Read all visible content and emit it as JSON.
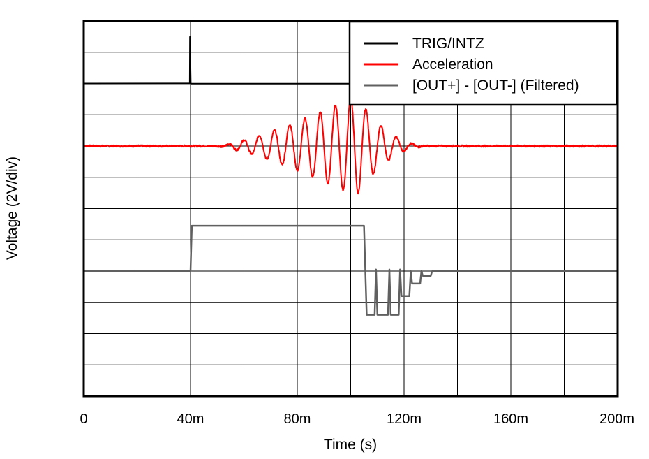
{
  "chart_data": {
    "type": "line",
    "title": "",
    "xlabel": "Time (s)",
    "ylabel": "Voltage (2V/div)",
    "xlim": [
      0,
      0.2
    ],
    "ylim": [
      -16,
      8
    ],
    "x_tick_labels": [
      "0",
      "40m",
      "80m",
      "120m",
      "160m",
      "200m"
    ],
    "x_ticks": [
      0,
      0.04,
      0.08,
      0.12,
      0.16,
      0.2
    ],
    "vertical_divisions": 10,
    "horizontal_divisions": 12,
    "grid": true,
    "legend": {
      "position": "top-right",
      "entries": [
        "TRIG/INTZ",
        "Acceleration",
        "[OUT+] - [OUT-] (Filtered)"
      ]
    },
    "series": [
      {
        "name": "TRIG/INTZ",
        "color": "#000000",
        "points": [
          [
            0,
            4
          ],
          [
            0.0397,
            4
          ],
          [
            0.0398,
            7.0
          ],
          [
            0.0401,
            4
          ],
          [
            0.2,
            4
          ]
        ]
      },
      {
        "name": "Acceleration",
        "color": "#ff0000",
        "baseline": 0,
        "burst": {
          "start": 0.05,
          "end": 0.13,
          "frequency_hz": 175,
          "peak_amplitude_v": 3.2,
          "peak_time": 0.102
        },
        "points": [
          [
            0,
            0
          ],
          [
            0.05,
            0
          ],
          [
            0.055,
            1.0
          ],
          [
            0.06,
            -1.8
          ],
          [
            0.064,
            1.8
          ],
          [
            0.068,
            -2.4
          ],
          [
            0.078,
            2.6
          ],
          [
            0.088,
            -2.9
          ],
          [
            0.098,
            3.1
          ],
          [
            0.102,
            3.2
          ],
          [
            0.104,
            -3.2
          ],
          [
            0.11,
            2.5
          ],
          [
            0.115,
            -1.0
          ],
          [
            0.118,
            1.0
          ],
          [
            0.12,
            -0.7
          ],
          [
            0.125,
            0.2
          ],
          [
            0.135,
            0
          ],
          [
            0.2,
            0
          ]
        ]
      },
      {
        "name": "[OUT+] - [OUT-] (Filtered)",
        "color": "#606060",
        "points": [
          [
            0,
            -8
          ],
          [
            0.04,
            -8
          ],
          [
            0.0405,
            -5.1
          ],
          [
            0.105,
            -5.1
          ],
          [
            0.1055,
            -8
          ],
          [
            0.106,
            -10.8
          ],
          [
            0.109,
            -10.8
          ],
          [
            0.1095,
            -7.9
          ],
          [
            0.11,
            -10.8
          ],
          [
            0.114,
            -10.8
          ],
          [
            0.1145,
            -7.9
          ],
          [
            0.115,
            -10.8
          ],
          [
            0.118,
            -10.8
          ],
          [
            0.1185,
            -7.9
          ],
          [
            0.119,
            -9.6
          ],
          [
            0.122,
            -9.6
          ],
          [
            0.1225,
            -8.0
          ],
          [
            0.123,
            -8.8
          ],
          [
            0.126,
            -8.8
          ],
          [
            0.1265,
            -8.0
          ],
          [
            0.127,
            -8.3
          ],
          [
            0.13,
            -8.3
          ],
          [
            0.1305,
            -8.0
          ],
          [
            0.2,
            -8
          ]
        ]
      }
    ]
  }
}
